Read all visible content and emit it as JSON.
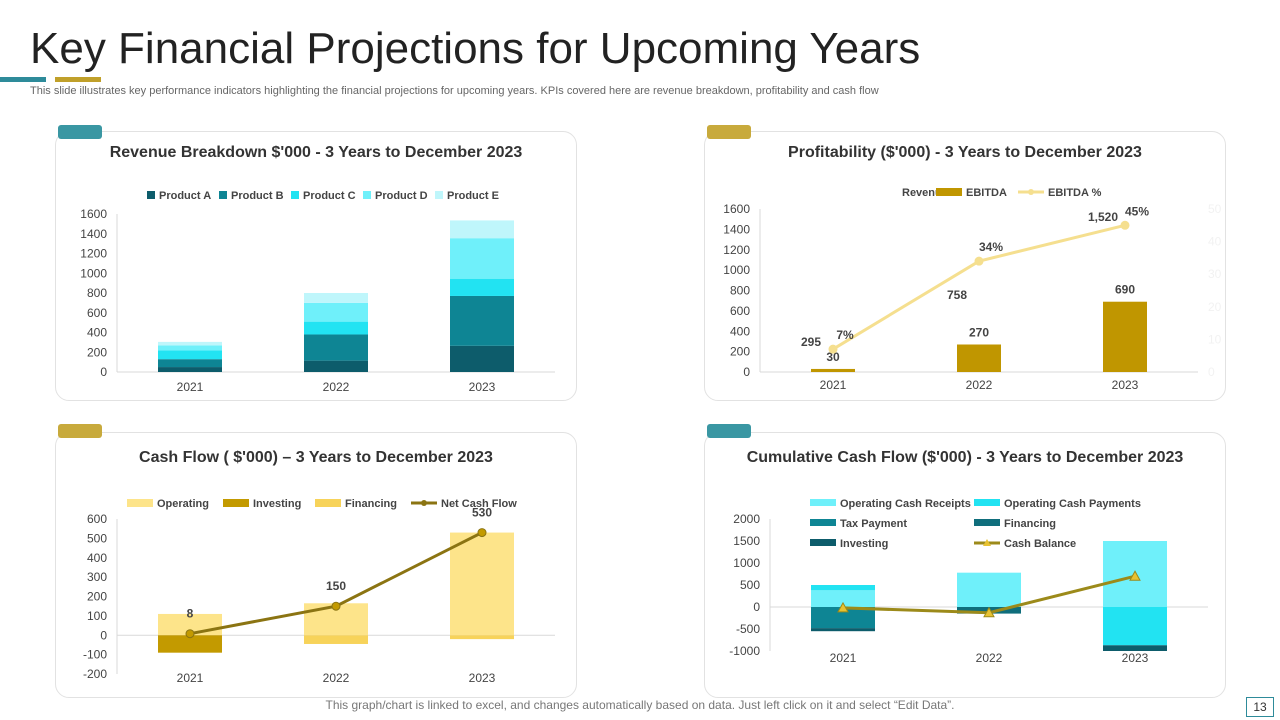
{
  "header": {
    "title": "Key Financial Projections for Upcoming Years",
    "subtitle": "This slide illustrates key performance indicators highlighting the financial projections for upcoming years. KPIs covered here are revenue breakdown, profitability and cash flow"
  },
  "footer": {
    "note": "This graph/chart is linked to excel, and changes automatically based on data. Just left click on it and select “Edit Data”.",
    "page": "13"
  },
  "colors": {
    "teal_tab": "#3a97a3",
    "gold_tab": "#c8aa3c"
  },
  "chart_data": [
    {
      "type": "bar",
      "stacked": true,
      "title": "Revenue Breakdown $'000 - 3 Years to December 2023",
      "categories": [
        "2021",
        "2022",
        "2023"
      ],
      "ylim": [
        0,
        1600
      ],
      "yticks": [
        0,
        200,
        400,
        600,
        800,
        1000,
        1200,
        1400,
        1600
      ],
      "legend_position": "top",
      "series": [
        {
          "name": "Product A",
          "color": "#0d5c6b",
          "values": [
            50,
            115,
            265
          ]
        },
        {
          "name": "Product B",
          "color": "#0e8594",
          "values": [
            80,
            265,
            505
          ]
        },
        {
          "name": "Product C",
          "color": "#22e3f2",
          "values": [
            90,
            130,
            175
          ]
        },
        {
          "name": "Product D",
          "color": "#6ff0fa",
          "values": [
            50,
            190,
            410
          ]
        },
        {
          "name": "Product E",
          "color": "#bff6fb",
          "values": [
            35,
            100,
            180
          ]
        }
      ]
    },
    {
      "type": "bar+line",
      "title": "Profitability ($'000) - 3 Years to December 2023",
      "categories": [
        "2021",
        "2022",
        "2023"
      ],
      "ylim": [
        0,
        1600
      ],
      "yticks": [
        0,
        200,
        400,
        600,
        800,
        1000,
        1200,
        1400,
        1600
      ],
      "y2lim": [
        0,
        50
      ],
      "y2ticks": [
        0,
        10,
        20,
        30,
        40,
        50
      ],
      "legend_position": "top",
      "series": [
        {
          "name": "Revenue",
          "kind": "bar",
          "color": "#ffffff",
          "values": [
            295,
            758,
            1520
          ],
          "labels": [
            "295",
            "758",
            "1,520"
          ]
        },
        {
          "name": "EBITDA",
          "kind": "bar",
          "color": "#c09600",
          "values": [
            30,
            270,
            690
          ],
          "labels": [
            "30",
            "270",
            "690"
          ]
        },
        {
          "name": "EBITDA %",
          "kind": "line",
          "axis": "right",
          "color": "#f5df8f",
          "values": [
            7,
            34,
            45
          ],
          "labels": [
            "7%",
            "34%",
            "45%"
          ]
        }
      ]
    },
    {
      "type": "bar+line",
      "stacked": true,
      "title": "Cash Flow ( $'000) – 3 Years to December 2023",
      "categories": [
        "2021",
        "2022",
        "2023"
      ],
      "ylim": [
        -200,
        600
      ],
      "yticks": [
        -200,
        -100,
        0,
        100,
        200,
        300,
        400,
        500,
        600
      ],
      "legend_position": "top",
      "series": [
        {
          "name": "Operating",
          "kind": "bar",
          "color": "#fde48a",
          "values": [
            110,
            165,
            530
          ]
        },
        {
          "name": "Investing",
          "kind": "bar",
          "color": "#c39a00",
          "values": [
            -90,
            0,
            0
          ]
        },
        {
          "name": "Financing",
          "kind": "bar",
          "color": "#f7d35a",
          "values": [
            0,
            -45,
            -20
          ]
        },
        {
          "name": "Net Cash Flow",
          "kind": "line",
          "color": "#8b7412",
          "values": [
            8,
            150,
            530
          ],
          "labels": [
            "8",
            "150",
            "530"
          ]
        }
      ]
    },
    {
      "type": "bar+line",
      "stacked": true,
      "title": "Cumulative Cash Flow ($'000) - 3 Years to December 2023",
      "categories": [
        "2021",
        "2022",
        "2023"
      ],
      "ylim": [
        -1000,
        2000
      ],
      "yticks": [
        -1000,
        -500,
        0,
        500,
        1000,
        1500,
        2000
      ],
      "legend_position": "top",
      "series": [
        {
          "name": "Operating Cash Receipts",
          "kind": "bar",
          "color": "#6ff0fa",
          "values": [
            380,
            780,
            1500
          ]
        },
        {
          "name": "Operating Cash Payments",
          "kind": "bar",
          "color": "#22e3f2",
          "values": [
            120,
            0,
            -870
          ]
        },
        {
          "name": "Tax Payment",
          "kind": "bar",
          "color": "#0e8594",
          "values": [
            -480,
            0,
            0
          ]
        },
        {
          "name": "Financing",
          "kind": "bar",
          "color": "#0f6e7c",
          "values": [
            0,
            -150,
            0
          ]
        },
        {
          "name": "Investing",
          "kind": "bar",
          "color": "#0d5c6b",
          "values": [
            -70,
            0,
            -130
          ]
        },
        {
          "name": "Cash Balance",
          "kind": "line",
          "color": "#9c8a1a",
          "values": [
            -20,
            -130,
            700
          ]
        }
      ]
    }
  ]
}
